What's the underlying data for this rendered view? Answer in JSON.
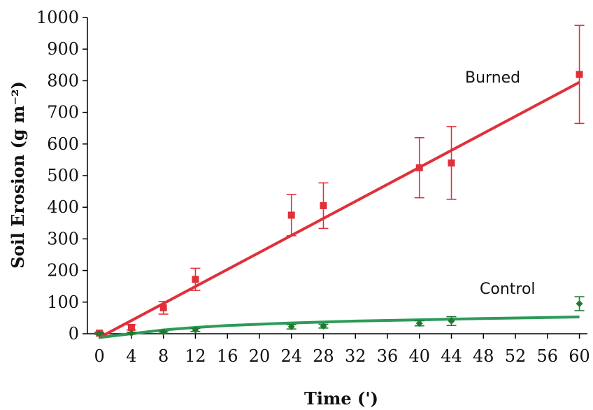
{
  "chart_data": {
    "type": "scatter",
    "xlabel": "Time  (')",
    "ylabel": "Soil Erosion (g m⁻²)",
    "xlim": [
      -1.5,
      61
    ],
    "ylim": [
      0,
      1000
    ],
    "xticks": [
      0,
      4,
      8,
      12,
      16,
      20,
      24,
      28,
      32,
      36,
      40,
      44,
      48,
      52,
      56,
      60
    ],
    "yticks": [
      0,
      100,
      200,
      300,
      400,
      500,
      600,
      700,
      800,
      900,
      1000
    ],
    "grid": false,
    "series": [
      {
        "name": "Burned",
        "color": "#e0303a",
        "marker": "square",
        "points": [
          {
            "x": 0,
            "y": 2,
            "err": 3
          },
          {
            "x": 4,
            "y": 20,
            "err": 8
          },
          {
            "x": 8,
            "y": 82,
            "err": 20
          },
          {
            "x": 12,
            "y": 172,
            "err": 35
          },
          {
            "x": 24,
            "y": 375,
            "err": 65
          },
          {
            "x": 28,
            "y": 405,
            "err": 72
          },
          {
            "x": 40,
            "y": 525,
            "err": 95
          },
          {
            "x": 44,
            "y": 540,
            "err": 115
          },
          {
            "x": 60,
            "y": 820,
            "err": 155
          }
        ],
        "fit": {
          "kind": "linear",
          "x": [
            0,
            60
          ],
          "y": [
            -12,
            795
          ]
        }
      },
      {
        "name": "Control",
        "color": "#1f7a2f",
        "fit_color": "#2e9a5a",
        "marker": "diamond",
        "points": [
          {
            "x": 0,
            "y": 0,
            "err": 2
          },
          {
            "x": 4,
            "y": 2,
            "err": 3
          },
          {
            "x": 8,
            "y": 5,
            "err": 3
          },
          {
            "x": 12,
            "y": 12,
            "err": 5
          },
          {
            "x": 24,
            "y": 22,
            "err": 7
          },
          {
            "x": 28,
            "y": 24,
            "err": 6
          },
          {
            "x": 40,
            "y": 33,
            "err": 8
          },
          {
            "x": 44,
            "y": 40,
            "err": 14
          },
          {
            "x": 60,
            "y": 95,
            "err": 22
          }
        ],
        "fit": {
          "kind": "curve",
          "x": [
            0,
            4,
            8,
            12,
            16,
            24,
            32,
            40,
            48,
            60
          ],
          "y": [
            -12,
            0,
            12,
            20,
            26,
            34,
            40,
            44,
            48,
            53
          ]
        }
      }
    ]
  }
}
